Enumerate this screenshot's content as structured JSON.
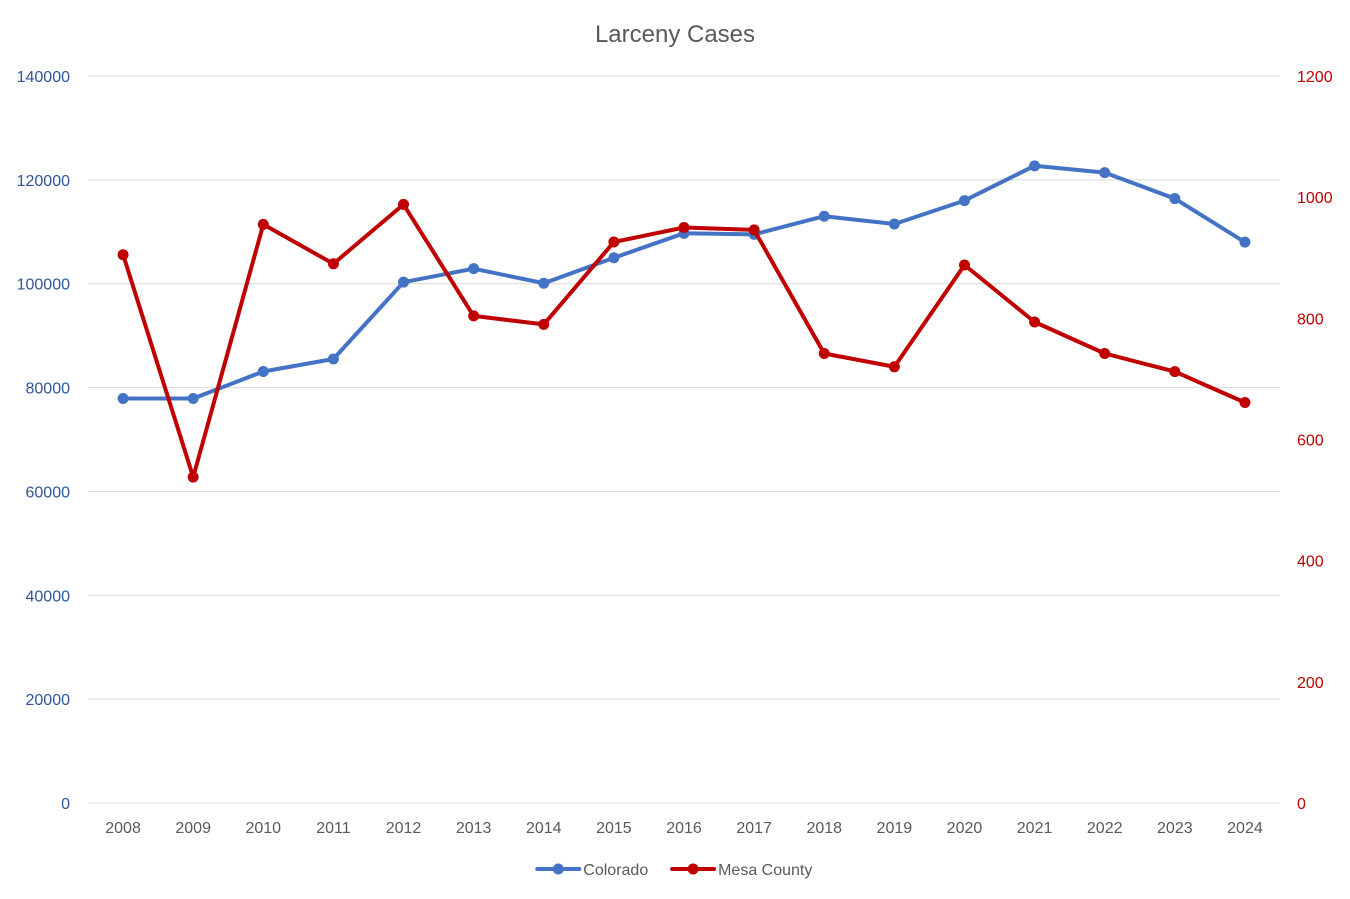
{
  "chart_data": {
    "type": "line",
    "title": "Larceny Cases",
    "xlabel": "",
    "ylabel": "",
    "y2label": "",
    "categories": [
      "2008",
      "2009",
      "2010",
      "2011",
      "2012",
      "2013",
      "2014",
      "2015",
      "2016",
      "2017",
      "2018",
      "2019",
      "2020",
      "2021",
      "2022",
      "2023",
      "2024"
    ],
    "y_axis_left": {
      "min": 0,
      "max": 140000,
      "ticks": [
        0,
        20000,
        40000,
        60000,
        80000,
        100000,
        120000,
        140000
      ],
      "color": "#2F5597"
    },
    "y_axis_right": {
      "min": 0,
      "max": 1200,
      "ticks": [
        0,
        200,
        400,
        600,
        800,
        1000,
        1200
      ],
      "color": "#C00000"
    },
    "grid": true,
    "legend_position": "bottom",
    "series": [
      {
        "name": "Colorado",
        "axis": "left",
        "color": "#4472C4",
        "values": [
          77900,
          77900,
          83100,
          85500,
          100300,
          102900,
          100100,
          105000,
          109700,
          109500,
          113000,
          111500,
          116000,
          122700,
          121400,
          116400,
          108000
        ]
      },
      {
        "name": "Mesa County",
        "axis": "right",
        "color": "#C00000",
        "values": [
          905,
          538,
          955,
          890,
          988,
          804,
          790,
          926,
          950,
          946,
          742,
          720,
          888,
          794,
          742,
          712,
          661
        ]
      }
    ]
  }
}
